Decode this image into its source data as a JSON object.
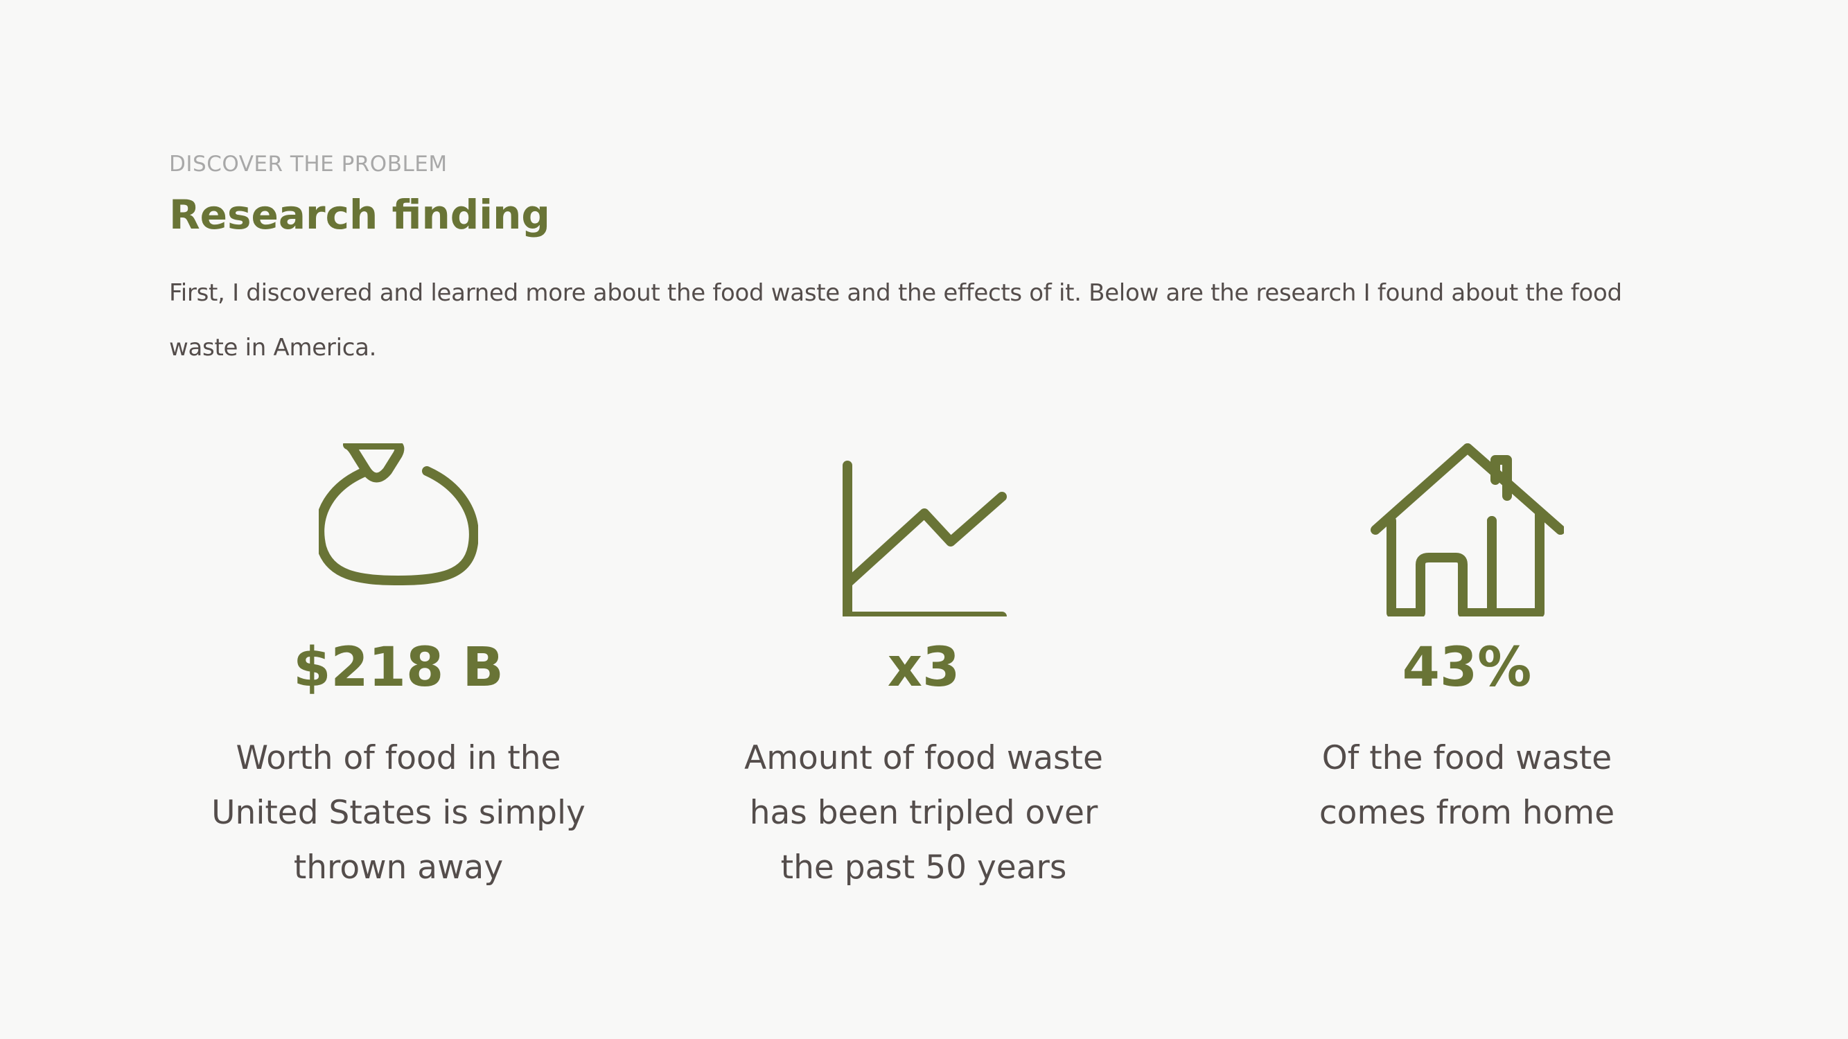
{
  "section": {
    "eyebrow": "DISCOVER THE PROBLEM",
    "title": "Research finding",
    "intro": "First, I discovered and learned more about the food waste and the effects of it. Below are the research I found about the food waste in America."
  },
  "colors": {
    "accent": "#697436",
    "body_text": "#544d4b",
    "muted_text": "#a8a8a8",
    "background": "#f8f8f7"
  },
  "stats": [
    {
      "icon": "money-bag-icon",
      "value": "$218 B",
      "caption": "Worth of food in the United States is simply thrown away"
    },
    {
      "icon": "line-chart-icon",
      "value": "x3",
      "caption": "Amount of food waste has been tripled over the past 50 years"
    },
    {
      "icon": "house-icon",
      "value": "43%",
      "caption": "Of the food waste comes from home"
    }
  ]
}
